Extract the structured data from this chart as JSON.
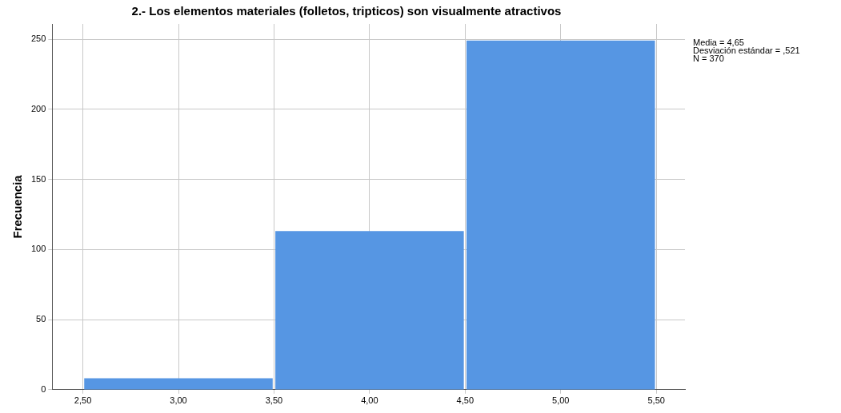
{
  "chart_data": {
    "type": "histogram",
    "title": "2.- Los elementos materiales (folletos, tripticos) son visualmente atractivos",
    "ylabel": "Frecuencia",
    "bins": [
      2.5,
      3.5,
      4.5,
      5.5
    ],
    "values": [
      8,
      113,
      249
    ],
    "color": "#5696e3",
    "xlim": [
      2.34,
      5.65
    ],
    "ylim": [
      0,
      261
    ],
    "xticks": [
      {
        "value": 2.5,
        "label": "2,50"
      },
      {
        "value": 3,
        "label": "3,00"
      },
      {
        "value": 3.5,
        "label": "3,50"
      },
      {
        "value": 4,
        "label": "4,00"
      },
      {
        "value": 4.5,
        "label": "4,50"
      },
      {
        "value": 5,
        "label": "5,00"
      },
      {
        "value": 5.5,
        "label": "5,50"
      }
    ],
    "yticks": [
      0,
      50,
      100,
      150,
      200,
      250
    ],
    "grid": true,
    "annotations": [
      "Media = 4,65",
      "Desviación estándar = ,521",
      "N = 370"
    ]
  }
}
